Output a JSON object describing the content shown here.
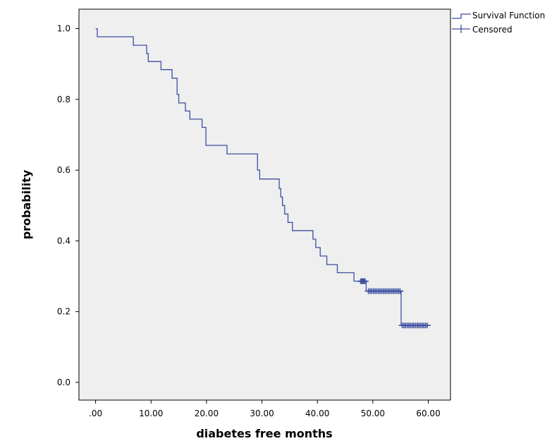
{
  "chart_data": {
    "type": "line",
    "title": "",
    "xlabel": "diabetes free months",
    "ylabel": "probability",
    "xlim": [
      -3,
      64
    ],
    "ylim": [
      -0.05,
      1.055
    ],
    "xticks": [
      {
        "value": 0,
        "label": ".00"
      },
      {
        "value": 10,
        "label": "10.00"
      },
      {
        "value": 20,
        "label": "20.00"
      },
      {
        "value": 30,
        "label": "30.00"
      },
      {
        "value": 40,
        "label": "40.00"
      },
      {
        "value": 50,
        "label": "50.00"
      },
      {
        "value": 60,
        "label": "60.00"
      }
    ],
    "yticks": [
      {
        "value": 0.0,
        "label": "0.0"
      },
      {
        "value": 0.2,
        "label": "0.2"
      },
      {
        "value": 0.4,
        "label": "0.4"
      },
      {
        "value": 0.6,
        "label": "0.6"
      },
      {
        "value": 0.8,
        "label": "0.8"
      },
      {
        "value": 1.0,
        "label": "1.0"
      }
    ],
    "grid": false,
    "legend_position": "top-right, outside plot",
    "plot_background": "#efefef",
    "line_color": "#3c4fa0",
    "series": [
      {
        "name": "Survival Function",
        "step": true,
        "x": [
          0,
          0.3,
          6.8,
          9.2,
          9.5,
          11.8,
          13.8,
          14.7,
          15.0,
          16.2,
          17.0,
          19.2,
          19.9,
          23.7,
          29.2,
          29.6,
          33.1,
          33.4,
          33.7,
          34.1,
          34.7,
          35.5,
          39.2,
          39.7,
          40.5,
          41.7,
          43.6,
          46.6,
          48.8,
          55.1
        ],
        "y": [
          1.0,
          0.977,
          0.953,
          0.93,
          0.907,
          0.884,
          0.86,
          0.814,
          0.79,
          0.767,
          0.744,
          0.721,
          0.67,
          0.646,
          0.6,
          0.575,
          0.548,
          0.524,
          0.5,
          0.476,
          0.452,
          0.429,
          0.405,
          0.381,
          0.357,
          0.333,
          0.31,
          0.286,
          0.258,
          0.161
        ],
        "x_end": 60.0
      },
      {
        "name": "Censored",
        "marker": "+",
        "x": [
          47.8,
          48.0,
          48.2,
          48.4,
          48.6,
          49.2,
          49.5,
          49.8,
          50.1,
          50.4,
          50.7,
          51.0,
          51.3,
          51.6,
          51.9,
          52.2,
          52.5,
          52.8,
          53.1,
          53.4,
          53.7,
          54.0,
          54.3,
          54.6,
          54.9,
          55.3,
          55.6,
          55.9,
          56.2,
          56.5,
          56.8,
          57.1,
          57.4,
          57.7,
          58.0,
          58.3,
          58.6,
          58.9,
          59.2,
          59.5,
          59.8
        ],
        "y": [
          0.286,
          0.286,
          0.286,
          0.286,
          0.286,
          0.258,
          0.258,
          0.258,
          0.258,
          0.258,
          0.258,
          0.258,
          0.258,
          0.258,
          0.258,
          0.258,
          0.258,
          0.258,
          0.258,
          0.258,
          0.258,
          0.258,
          0.258,
          0.258,
          0.258,
          0.161,
          0.161,
          0.161,
          0.161,
          0.161,
          0.161,
          0.161,
          0.161,
          0.161,
          0.161,
          0.161,
          0.161,
          0.161,
          0.161,
          0.161,
          0.161
        ]
      }
    ]
  }
}
